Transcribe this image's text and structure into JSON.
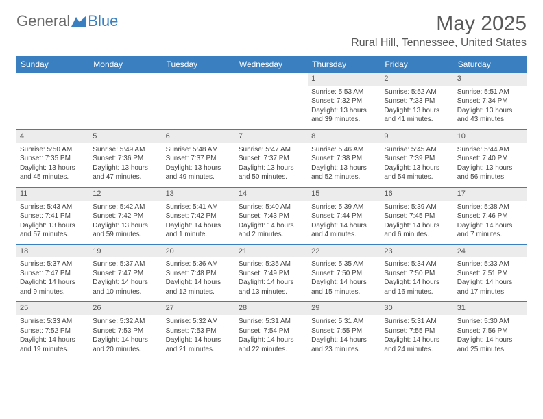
{
  "logo": {
    "word1": "General",
    "word2": "Blue"
  },
  "colors": {
    "header_bg": "#3a7fbf",
    "header_text": "#ffffff",
    "daynum_bg": "#ececec",
    "row_border": "#3a7fbf",
    "title_color": "#5a5a5a",
    "body_text": "#444444",
    "logo_gray": "#6b6b6b",
    "logo_blue": "#3a7fbf"
  },
  "title": "May 2025",
  "location": "Rural Hill, Tennessee, United States",
  "day_headers": [
    "Sunday",
    "Monday",
    "Tuesday",
    "Wednesday",
    "Thursday",
    "Friday",
    "Saturday"
  ],
  "layout": {
    "fontsize_title": 30,
    "fontsize_location": 16,
    "fontsize_dayheader": 12,
    "fontsize_daynum": 11,
    "fontsize_body": 10
  },
  "weeks": [
    [
      {
        "num": "",
        "sunrise": "",
        "sunset": "",
        "daylight": ""
      },
      {
        "num": "",
        "sunrise": "",
        "sunset": "",
        "daylight": ""
      },
      {
        "num": "",
        "sunrise": "",
        "sunset": "",
        "daylight": ""
      },
      {
        "num": "",
        "sunrise": "",
        "sunset": "",
        "daylight": ""
      },
      {
        "num": "1",
        "sunrise": "Sunrise: 5:53 AM",
        "sunset": "Sunset: 7:32 PM",
        "daylight": "Daylight: 13 hours and 39 minutes."
      },
      {
        "num": "2",
        "sunrise": "Sunrise: 5:52 AM",
        "sunset": "Sunset: 7:33 PM",
        "daylight": "Daylight: 13 hours and 41 minutes."
      },
      {
        "num": "3",
        "sunrise": "Sunrise: 5:51 AM",
        "sunset": "Sunset: 7:34 PM",
        "daylight": "Daylight: 13 hours and 43 minutes."
      }
    ],
    [
      {
        "num": "4",
        "sunrise": "Sunrise: 5:50 AM",
        "sunset": "Sunset: 7:35 PM",
        "daylight": "Daylight: 13 hours and 45 minutes."
      },
      {
        "num": "5",
        "sunrise": "Sunrise: 5:49 AM",
        "sunset": "Sunset: 7:36 PM",
        "daylight": "Daylight: 13 hours and 47 minutes."
      },
      {
        "num": "6",
        "sunrise": "Sunrise: 5:48 AM",
        "sunset": "Sunset: 7:37 PM",
        "daylight": "Daylight: 13 hours and 49 minutes."
      },
      {
        "num": "7",
        "sunrise": "Sunrise: 5:47 AM",
        "sunset": "Sunset: 7:37 PM",
        "daylight": "Daylight: 13 hours and 50 minutes."
      },
      {
        "num": "8",
        "sunrise": "Sunrise: 5:46 AM",
        "sunset": "Sunset: 7:38 PM",
        "daylight": "Daylight: 13 hours and 52 minutes."
      },
      {
        "num": "9",
        "sunrise": "Sunrise: 5:45 AM",
        "sunset": "Sunset: 7:39 PM",
        "daylight": "Daylight: 13 hours and 54 minutes."
      },
      {
        "num": "10",
        "sunrise": "Sunrise: 5:44 AM",
        "sunset": "Sunset: 7:40 PM",
        "daylight": "Daylight: 13 hours and 56 minutes."
      }
    ],
    [
      {
        "num": "11",
        "sunrise": "Sunrise: 5:43 AM",
        "sunset": "Sunset: 7:41 PM",
        "daylight": "Daylight: 13 hours and 57 minutes."
      },
      {
        "num": "12",
        "sunrise": "Sunrise: 5:42 AM",
        "sunset": "Sunset: 7:42 PM",
        "daylight": "Daylight: 13 hours and 59 minutes."
      },
      {
        "num": "13",
        "sunrise": "Sunrise: 5:41 AM",
        "sunset": "Sunset: 7:42 PM",
        "daylight": "Daylight: 14 hours and 1 minute."
      },
      {
        "num": "14",
        "sunrise": "Sunrise: 5:40 AM",
        "sunset": "Sunset: 7:43 PM",
        "daylight": "Daylight: 14 hours and 2 minutes."
      },
      {
        "num": "15",
        "sunrise": "Sunrise: 5:39 AM",
        "sunset": "Sunset: 7:44 PM",
        "daylight": "Daylight: 14 hours and 4 minutes."
      },
      {
        "num": "16",
        "sunrise": "Sunrise: 5:39 AM",
        "sunset": "Sunset: 7:45 PM",
        "daylight": "Daylight: 14 hours and 6 minutes."
      },
      {
        "num": "17",
        "sunrise": "Sunrise: 5:38 AM",
        "sunset": "Sunset: 7:46 PM",
        "daylight": "Daylight: 14 hours and 7 minutes."
      }
    ],
    [
      {
        "num": "18",
        "sunrise": "Sunrise: 5:37 AM",
        "sunset": "Sunset: 7:47 PM",
        "daylight": "Daylight: 14 hours and 9 minutes."
      },
      {
        "num": "19",
        "sunrise": "Sunrise: 5:37 AM",
        "sunset": "Sunset: 7:47 PM",
        "daylight": "Daylight: 14 hours and 10 minutes."
      },
      {
        "num": "20",
        "sunrise": "Sunrise: 5:36 AM",
        "sunset": "Sunset: 7:48 PM",
        "daylight": "Daylight: 14 hours and 12 minutes."
      },
      {
        "num": "21",
        "sunrise": "Sunrise: 5:35 AM",
        "sunset": "Sunset: 7:49 PM",
        "daylight": "Daylight: 14 hours and 13 minutes."
      },
      {
        "num": "22",
        "sunrise": "Sunrise: 5:35 AM",
        "sunset": "Sunset: 7:50 PM",
        "daylight": "Daylight: 14 hours and 15 minutes."
      },
      {
        "num": "23",
        "sunrise": "Sunrise: 5:34 AM",
        "sunset": "Sunset: 7:50 PM",
        "daylight": "Daylight: 14 hours and 16 minutes."
      },
      {
        "num": "24",
        "sunrise": "Sunrise: 5:33 AM",
        "sunset": "Sunset: 7:51 PM",
        "daylight": "Daylight: 14 hours and 17 minutes."
      }
    ],
    [
      {
        "num": "25",
        "sunrise": "Sunrise: 5:33 AM",
        "sunset": "Sunset: 7:52 PM",
        "daylight": "Daylight: 14 hours and 19 minutes."
      },
      {
        "num": "26",
        "sunrise": "Sunrise: 5:32 AM",
        "sunset": "Sunset: 7:53 PM",
        "daylight": "Daylight: 14 hours and 20 minutes."
      },
      {
        "num": "27",
        "sunrise": "Sunrise: 5:32 AM",
        "sunset": "Sunset: 7:53 PM",
        "daylight": "Daylight: 14 hours and 21 minutes."
      },
      {
        "num": "28",
        "sunrise": "Sunrise: 5:31 AM",
        "sunset": "Sunset: 7:54 PM",
        "daylight": "Daylight: 14 hours and 22 minutes."
      },
      {
        "num": "29",
        "sunrise": "Sunrise: 5:31 AM",
        "sunset": "Sunset: 7:55 PM",
        "daylight": "Daylight: 14 hours and 23 minutes."
      },
      {
        "num": "30",
        "sunrise": "Sunrise: 5:31 AM",
        "sunset": "Sunset: 7:55 PM",
        "daylight": "Daylight: 14 hours and 24 minutes."
      },
      {
        "num": "31",
        "sunrise": "Sunrise: 5:30 AM",
        "sunset": "Sunset: 7:56 PM",
        "daylight": "Daylight: 14 hours and 25 minutes."
      }
    ]
  ]
}
